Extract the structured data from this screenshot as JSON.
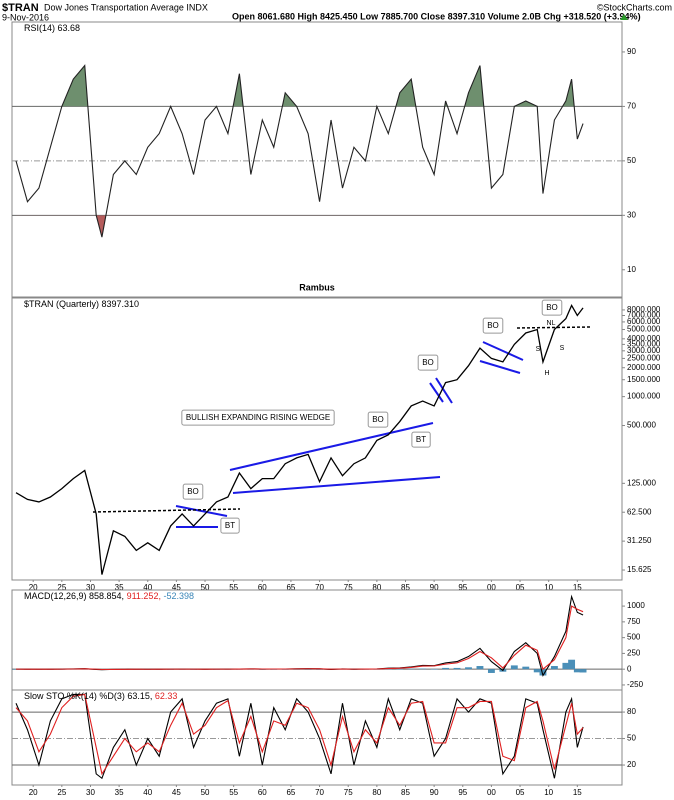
{
  "header": {
    "symbol": "$TRAN",
    "name": "Dow Jones Transportation Average INDX",
    "date": "9-Nov-2016",
    "quote": "Open 8061.680 High 8425.450 Low 7885.700 Close 8397.310 Volume 2.0B Chg +318.520 (+3.94%)",
    "credit": "©StockCharts.com"
  },
  "chart_data": [
    {
      "type": "line",
      "title_parts": [
        {
          "text": "RSI(14) 63.68",
          "color": "#000000"
        }
      ],
      "footnote": "Rambus",
      "x": [
        1917,
        1919,
        1921,
        1923,
        1925,
        1927,
        1929,
        1931,
        1932,
        1934,
        1936,
        1938,
        1940,
        1942,
        1944,
        1946,
        1948,
        1950,
        1952,
        1954,
        1956,
        1958,
        1960,
        1962,
        1964,
        1966,
        1968,
        1970,
        1972,
        1974,
        1976,
        1978,
        1980,
        1982,
        1984,
        1986,
        1988,
        1990,
        1992,
        1994,
        1996,
        1998,
        2000,
        2002,
        2004,
        2006,
        2008,
        2009,
        2011,
        2013,
        2014,
        2015,
        2016
      ],
      "series": [
        {
          "color": "#222222",
          "values": [
            50,
            35,
            40,
            55,
            70,
            80,
            85,
            30,
            22,
            45,
            50,
            45,
            55,
            60,
            70,
            60,
            45,
            65,
            70,
            60,
            82,
            45,
            65,
            55,
            75,
            70,
            60,
            35,
            65,
            40,
            55,
            50,
            70,
            60,
            75,
            80,
            55,
            45,
            72,
            60,
            75,
            85,
            40,
            45,
            70,
            72,
            70,
            38,
            65,
            72,
            80,
            58,
            63.68
          ]
        }
      ],
      "fills": [
        {
          "above": 70,
          "color": "#6e8f6e"
        },
        {
          "below": 30,
          "color": "#b55c5c"
        }
      ],
      "xlim": [
        1916.3,
        2022.8
      ],
      "ylim": [
        0,
        101
      ],
      "yticks": [
        10,
        30,
        50,
        70,
        90
      ],
      "grid_lines": [
        {
          "value": 70,
          "dash": false
        },
        {
          "value": 50,
          "dash": true
        },
        {
          "value": 30,
          "dash": false
        }
      ]
    },
    {
      "type": "line",
      "log_scale": true,
      "title_parts": [
        {
          "text": "$TRAN (Quarterly) 8397.310",
          "color": "#000000"
        }
      ],
      "x": [
        1917,
        1919,
        1921,
        1923,
        1925,
        1927,
        1929,
        1931,
        1932,
        1934,
        1936,
        1938,
        1940,
        1942,
        1944,
        1946,
        1948,
        1950,
        1952,
        1954,
        1956,
        1958,
        1960,
        1962,
        1964,
        1966,
        1968,
        1970,
        1972,
        1974,
        1976,
        1978,
        1980,
        1982,
        1984,
        1986,
        1988,
        1990,
        1992,
        1994,
        1996,
        1998,
        2000,
        2002,
        2004,
        2006,
        2008,
        2009,
        2011,
        2013,
        2014,
        2015,
        2016
      ],
      "series": [
        {
          "color": "#000000",
          "values": [
            100,
            85,
            80,
            90,
            110,
            140,
            170,
            60,
            14,
            40,
            35,
            25,
            30,
            25,
            45,
            60,
            45,
            60,
            80,
            90,
            160,
            110,
            140,
            140,
            200,
            230,
            250,
            130,
            230,
            150,
            200,
            230,
            350,
            400,
            550,
            800,
            900,
            800,
            1400,
            1500,
            2100,
            3200,
            2500,
            2300,
            3500,
            4600,
            5000,
            2300,
            5000,
            6500,
            8900,
            7000,
            8397.31
          ]
        }
      ],
      "xlim": [
        1916.3,
        2022.8
      ],
      "ylim": [
        12.3,
        10650
      ],
      "yticks": [
        {
          "value": 15.625,
          "label": "15.625"
        },
        {
          "value": 31.25,
          "label": "31.250"
        },
        {
          "value": 62.5,
          "label": "62.500"
        },
        {
          "value": 125,
          "label": "125.000"
        },
        {
          "value": 500,
          "label": "500.000"
        },
        {
          "value": 1000,
          "label": "1000.000"
        },
        {
          "value": 1500,
          "label": "1500.000"
        },
        {
          "value": 2000,
          "label": "2000.000"
        },
        {
          "value": 2500,
          "label": "2500.000"
        },
        {
          "value": 3000,
          "label": "3000.000"
        },
        {
          "value": 3500,
          "label": "3500.000"
        },
        {
          "value": 4000,
          "label": "4000.000"
        },
        {
          "value": 5000,
          "label": "5000.000"
        },
        {
          "value": 6000,
          "label": "6000.000"
        },
        {
          "value": 7000,
          "label": "7000.000"
        },
        {
          "value": 8000,
          "label": "8000.000"
        }
      ],
      "xticks": [
        {
          "value": 1920,
          "label": "20"
        },
        {
          "value": 1925,
          "label": "25"
        },
        {
          "value": 1930,
          "label": "30"
        },
        {
          "value": 1935,
          "label": "35"
        },
        {
          "value": 1940,
          "label": "40"
        },
        {
          "value": 1945,
          "label": "45"
        },
        {
          "value": 1950,
          "label": "50"
        },
        {
          "value": 1955,
          "label": "55"
        },
        {
          "value": 1960,
          "label": "60"
        },
        {
          "value": 1965,
          "label": "65"
        },
        {
          "value": 1970,
          "label": "70"
        },
        {
          "value": 1975,
          "label": "75"
        },
        {
          "value": 1980,
          "label": "80"
        },
        {
          "value": 1985,
          "label": "85"
        },
        {
          "value": 1990,
          "label": "90"
        },
        {
          "value": 1995,
          "label": "95"
        },
        {
          "value": 2000,
          "label": "00"
        },
        {
          "value": 2005,
          "label": "05"
        },
        {
          "value": 2010,
          "label": "10"
        },
        {
          "value": 2015,
          "label": "15"
        }
      ],
      "annotations": [
        {
          "text": "BO"
        },
        {
          "text": "BT"
        },
        {
          "text": "BULLISH EXPANDING RISING WEDGE"
        },
        {
          "text": "BO"
        },
        {
          "text": "BT"
        },
        {
          "text": "BO"
        },
        {
          "text": "BO"
        },
        {
          "text": "BO"
        },
        {
          "text": "NL"
        },
        {
          "text": "S"
        },
        {
          "text": "H"
        },
        {
          "text": "S"
        }
      ]
    },
    {
      "type": "line",
      "title_parts": [
        {
          "text": "MACD(12,26,9) 858.854,",
          "color": "#000000"
        },
        {
          "text": "911.252,",
          "color": "#e02020"
        },
        {
          "text": "-52.398",
          "color": "#3a86b8"
        }
      ],
      "x": [
        1917,
        1919,
        1921,
        1923,
        1925,
        1927,
        1929,
        1931,
        1932,
        1934,
        1936,
        1938,
        1940,
        1942,
        1944,
        1946,
        1948,
        1950,
        1952,
        1954,
        1956,
        1958,
        1960,
        1962,
        1964,
        1966,
        1968,
        1970,
        1972,
        1974,
        1976,
        1978,
        1980,
        1982,
        1984,
        1986,
        1988,
        1990,
        1992,
        1994,
        1996,
        1998,
        2000,
        2002,
        2004,
        2006,
        2008,
        2009,
        2011,
        2013,
        2014,
        2015,
        2016
      ],
      "series": [
        {
          "type": "bar",
          "color": "#4a8fb8",
          "values": [
            0,
            0,
            -1,
            0,
            1,
            2,
            2,
            -5,
            -3,
            1,
            1,
            0,
            0,
            0,
            0,
            1,
            0,
            0,
            0,
            1,
            1,
            1,
            -1,
            0,
            0,
            1,
            1,
            0,
            -5,
            2,
            -1,
            1,
            1,
            5,
            4,
            7,
            10,
            3,
            20,
            20,
            30,
            50,
            -60,
            -40,
            60,
            40,
            -50,
            -100,
            50,
            100,
            150,
            -50,
            -52.398
          ]
        },
        {
          "color": "#000000",
          "values": [
            1,
            0,
            -1,
            0,
            2,
            5,
            8,
            -5,
            -8,
            -3,
            -1,
            0,
            -1,
            0,
            1,
            2,
            1,
            0,
            1,
            2,
            3,
            5,
            2,
            3,
            3,
            6,
            8,
            6,
            -5,
            5,
            0,
            3,
            4,
            15,
            20,
            35,
            60,
            55,
            100,
            120,
            200,
            330,
            120,
            -20,
            280,
            420,
            250,
            -100,
            200,
            600,
            1150,
            900,
            858.854
          ]
        },
        {
          "color": "#e02020",
          "values": [
            1,
            0,
            0,
            0,
            1,
            3,
            6,
            0,
            -5,
            -4,
            -2,
            0,
            -1,
            0,
            1,
            1,
            1,
            0,
            1,
            1,
            2,
            4,
            3,
            3,
            3,
            5,
            7,
            6,
            0,
            3,
            1,
            2,
            3,
            10,
            16,
            28,
            50,
            52,
            80,
            100,
            170,
            280,
            180,
            20,
            220,
            380,
            300,
            0,
            150,
            500,
            1000,
            950,
            911.252
          ]
        }
      ],
      "xlim": [
        1916.3,
        2022.8
      ],
      "ylim": [
        -330,
        1255
      ],
      "yticks": [
        -250,
        0,
        250,
        500,
        750,
        1000
      ],
      "grid_lines": [
        {
          "value": 0,
          "dash": false
        }
      ]
    },
    {
      "type": "line",
      "title_parts": [
        {
          "text": "Slow STO %K(14) %D(3) 63.15,",
          "color": "#000000"
        },
        {
          "text": "62.33",
          "color": "#e02020"
        }
      ],
      "x": [
        1917,
        1919,
        1921,
        1923,
        1925,
        1927,
        1929,
        1931,
        1932,
        1934,
        1936,
        1938,
        1940,
        1942,
        1944,
        1946,
        1948,
        1950,
        1952,
        1954,
        1956,
        1958,
        1960,
        1962,
        1964,
        1966,
        1968,
        1970,
        1972,
        1974,
        1976,
        1978,
        1980,
        1982,
        1984,
        1986,
        1988,
        1990,
        1992,
        1994,
        1996,
        1998,
        2000,
        2002,
        2004,
        2006,
        2008,
        2009,
        2011,
        2013,
        2014,
        2015,
        2016
      ],
      "series": [
        {
          "color": "#000000",
          "values": [
            90,
            60,
            20,
            70,
            95,
            100,
            100,
            10,
            5,
            40,
            60,
            20,
            50,
            30,
            80,
            95,
            40,
            70,
            90,
            95,
            30,
            90,
            20,
            85,
            60,
            95,
            80,
            50,
            10,
            90,
            20,
            70,
            40,
            95,
            60,
            95,
            90,
            30,
            50,
            95,
            80,
            95,
            90,
            10,
            30,
            95,
            90,
            60,
            5,
            80,
            95,
            40,
            63.15
          ]
        },
        {
          "color": "#e02020",
          "values": [
            85,
            70,
            35,
            55,
            85,
            98,
            100,
            40,
            10,
            30,
            50,
            35,
            45,
            35,
            65,
            90,
            55,
            65,
            85,
            93,
            45,
            75,
            35,
            70,
            65,
            90,
            85,
            60,
            20,
            75,
            35,
            60,
            45,
            85,
            65,
            90,
            92,
            45,
            45,
            85,
            85,
            92,
            92,
            30,
            25,
            85,
            92,
            70,
            15,
            65,
            90,
            55,
            62.33
          ]
        }
      ],
      "xlim": [
        1916.3,
        2022.8
      ],
      "ylim": [
        -2.6,
        105
      ],
      "yticks": [
        20,
        50,
        80
      ],
      "grid_lines": [
        {
          "value": 80,
          "dash": false
        },
        {
          "value": 50,
          "dash": true
        },
        {
          "value": 20,
          "dash": false
        }
      ],
      "xticks": [
        {
          "value": 1920,
          "label": "20"
        },
        {
          "value": 1925,
          "label": "25"
        },
        {
          "value": 1930,
          "label": "30"
        },
        {
          "value": 1935,
          "label": "35"
        },
        {
          "value": 1940,
          "label": "40"
        },
        {
          "value": 1945,
          "label": "45"
        },
        {
          "value": 1950,
          "label": "50"
        },
        {
          "value": 1955,
          "label": "55"
        },
        {
          "value": 1960,
          "label": "60"
        },
        {
          "value": 1965,
          "label": "65"
        },
        {
          "value": 1970,
          "label": "70"
        },
        {
          "value": 1975,
          "label": "75"
        },
        {
          "value": 1980,
          "label": "80"
        },
        {
          "value": 1985,
          "label": "85"
        },
        {
          "value": 1990,
          "label": "90"
        },
        {
          "value": 1995,
          "label": "95"
        },
        {
          "value": 2000,
          "label": "00"
        },
        {
          "value": 2005,
          "label": "05"
        },
        {
          "value": 2010,
          "label": "10"
        },
        {
          "value": 2015,
          "label": "15"
        }
      ]
    }
  ]
}
